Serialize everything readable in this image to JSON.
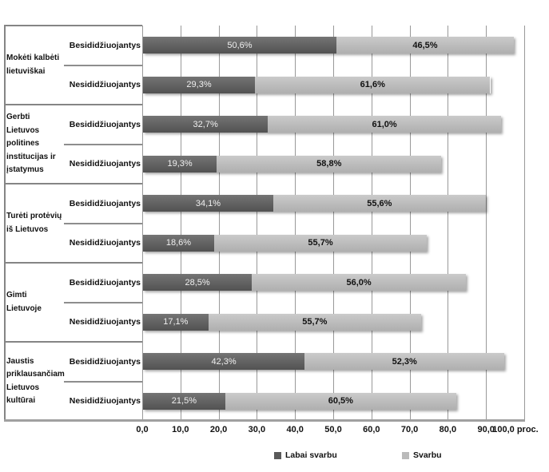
{
  "chart_data": {
    "type": "bar",
    "orientation": "horizontal",
    "stacked": true,
    "grid": "vertical-only",
    "xlim": [
      0,
      100
    ],
    "x_unit": "proc.",
    "x_ticks": [
      "0,0",
      "10,0",
      "20,0",
      "30,0",
      "40,0",
      "50,0",
      "60,0",
      "70,0",
      "80,0",
      "90,0",
      "100,0 proc."
    ],
    "legend_position": "bottom-center",
    "legend": [
      {
        "name": "Labai svarbu",
        "color": "#5a5a5a"
      },
      {
        "name": "Svarbu",
        "color": "#bababa"
      }
    ],
    "series_names": [
      "Labai svarbu",
      "Svarbu"
    ],
    "groups": [
      {
        "label": "Mokėti kalbėti lietuviškai",
        "rows": [
          {
            "label": "Besididžiuojantys",
            "values": [
              50.6,
              46.5
            ],
            "value_labels": [
              "50,6%",
              "46,5%"
            ]
          },
          {
            "label": "Nesididžiuojantys",
            "values": [
              29.3,
              61.6
            ],
            "value_labels": [
              "29,3%",
              "61,6%"
            ]
          }
        ]
      },
      {
        "label": "Gerbti Lietuvos politines institucijas ir įstatymus",
        "rows": [
          {
            "label": "Besididžiuojantys",
            "values": [
              32.7,
              61.0
            ],
            "value_labels": [
              "32,7%",
              "61,0%"
            ]
          },
          {
            "label": "Nesididžiuojantys",
            "values": [
              19.3,
              58.8
            ],
            "value_labels": [
              "19,3%",
              "58,8%"
            ]
          }
        ]
      },
      {
        "label": "Turėti protėvių iš Lietuvos",
        "rows": [
          {
            "label": "Besididžiuojantys",
            "values": [
              34.1,
              55.6
            ],
            "value_labels": [
              "34,1%",
              "55,6%"
            ]
          },
          {
            "label": "Nesididžiuojantys",
            "values": [
              18.6,
              55.7
            ],
            "value_labels": [
              "18,6%",
              "55,7%"
            ]
          }
        ]
      },
      {
        "label": "Gimti Lietuvoje",
        "rows": [
          {
            "label": "Besididžiuojantys",
            "values": [
              28.5,
              56.0
            ],
            "value_labels": [
              "28,5%",
              "56,0%"
            ]
          },
          {
            "label": "Nesididžiuojantys",
            "values": [
              17.1,
              55.7
            ],
            "value_labels": [
              "17,1%",
              "55,7%"
            ]
          }
        ]
      },
      {
        "label": "Jaustis priklausančiam Lietuvos kultūrai",
        "rows": [
          {
            "label": "Besididžiuojantys",
            "values": [
              42.3,
              52.3
            ],
            "value_labels": [
              "42,3%",
              "52,3%"
            ]
          },
          {
            "label": "Nesididžiuojantys",
            "values": [
              21.5,
              60.5
            ],
            "value_labels": [
              "21,5%",
              "60,5%"
            ]
          }
        ]
      }
    ],
    "colors": {
      "labai_svarbu": "#5a5a5a",
      "svarbu": "#bababa",
      "gridline": "#999999"
    }
  }
}
